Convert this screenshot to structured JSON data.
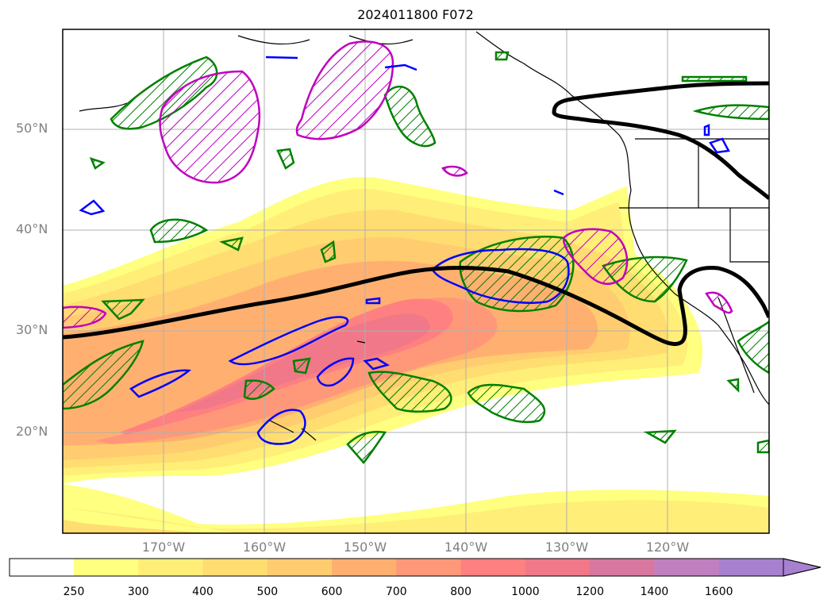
{
  "title": "2024011800 F072",
  "latitude_labels": [
    "50°N",
    "40°N",
    "30°N",
    "20°N"
  ],
  "longitude_labels": [
    "170°W",
    "160°W",
    "150°W",
    "140°W",
    "130°W",
    "120°W"
  ],
  "colorbar": {
    "ticks": [
      "250",
      "300",
      "400",
      "500",
      "600",
      "700",
      "800",
      "1000",
      "1200",
      "1400",
      "1600"
    ],
    "colors": [
      "#ffff80",
      "#ffee78",
      "#ffdd70",
      "#ffcc70",
      "#ffb070",
      "#ff9878",
      "#ff8080",
      "#f07888",
      "#d878a0",
      "#c080c0",
      "#a880d0"
    ]
  },
  "map": {
    "lat_range": [
      10,
      60
    ],
    "lon_range": [
      -180,
      -110
    ],
    "jet_line_color": "#000000",
    "contour_colors": {
      "green": "#008000",
      "blue": "#0000ff",
      "magenta": "#c000c0"
    }
  }
}
